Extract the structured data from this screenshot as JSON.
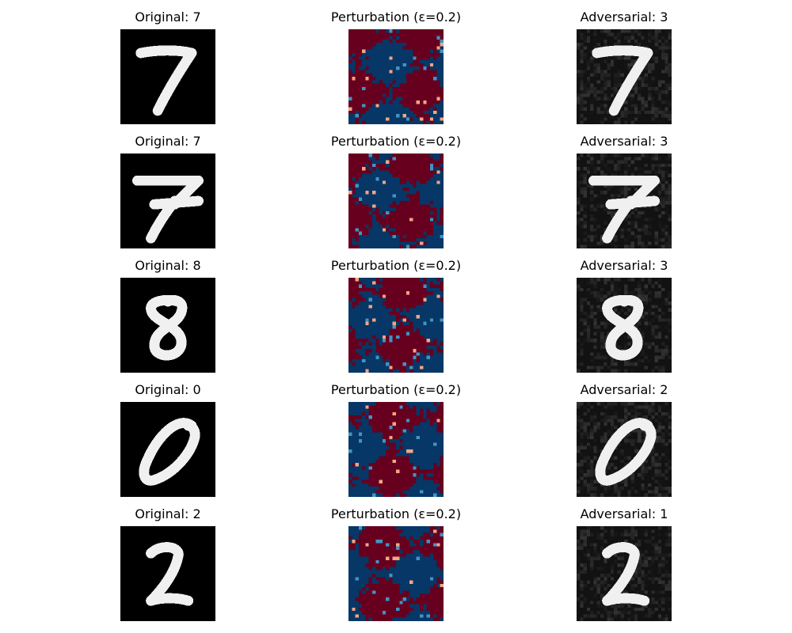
{
  "figure": {
    "rows": [
      {
        "original_label": "Original: 7",
        "perturbation_label": "Perturbation (ε=0.2)",
        "adversarial_label": "Adversarial: 3",
        "digit_icon": "seven-digit-image"
      },
      {
        "original_label": "Original: 7",
        "perturbation_label": "Perturbation (ε=0.2)",
        "adversarial_label": "Adversarial: 3",
        "digit_icon": "seven-digit-image"
      },
      {
        "original_label": "Original: 8",
        "perturbation_label": "Perturbation (ε=0.2)",
        "adversarial_label": "Adversarial: 3",
        "digit_icon": "eight-digit-image"
      },
      {
        "original_label": "Original: 0",
        "perturbation_label": "Perturbation (ε=0.2)",
        "adversarial_label": "Adversarial: 2",
        "digit_icon": "zero-digit-image"
      },
      {
        "original_label": "Original: 2",
        "perturbation_label": "Perturbation (ε=0.2)",
        "adversarial_label": "Adversarial: 1",
        "digit_icon": "two-digit-image"
      }
    ],
    "colors": {
      "original_background": "#000000",
      "digit_stroke": "#f0f0f0",
      "perturbation_negative": "#063766",
      "perturbation_positive": "#67001f",
      "perturbation_light_blue": "#4393c3",
      "perturbation_light_red": "#f4a582",
      "adversarial_background": "#121212"
    }
  }
}
